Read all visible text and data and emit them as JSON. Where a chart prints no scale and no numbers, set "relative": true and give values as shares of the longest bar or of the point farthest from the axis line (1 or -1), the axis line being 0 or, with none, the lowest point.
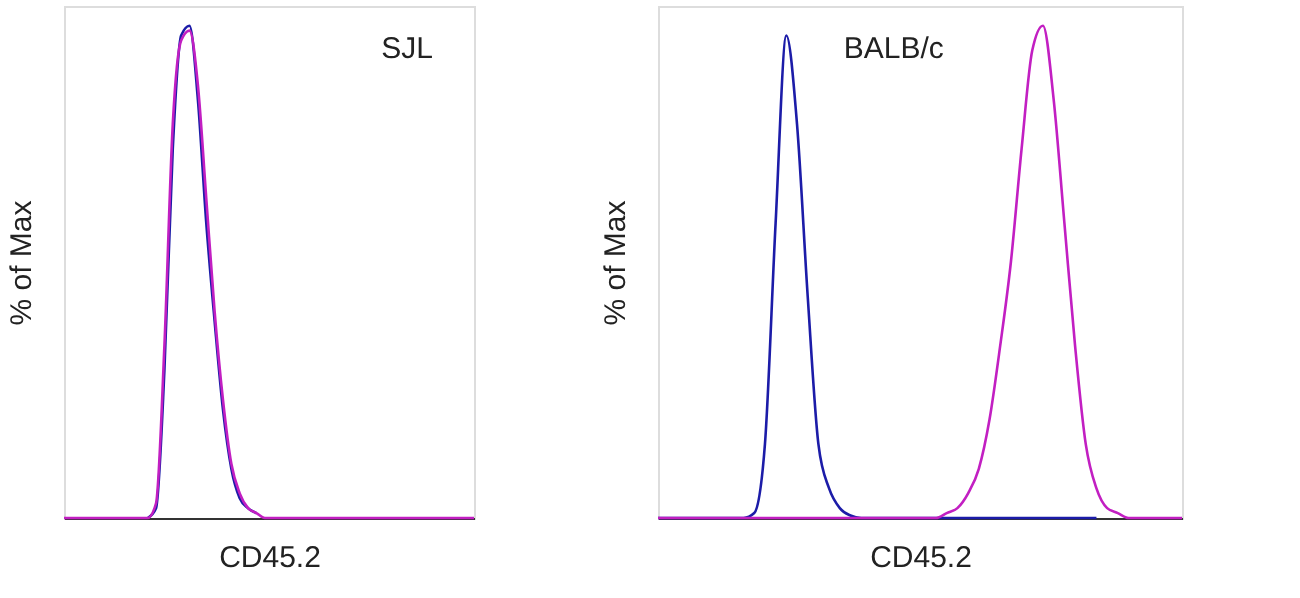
{
  "chart_data": [
    {
      "type": "line",
      "relative": true,
      "ylabel": "% of Max",
      "xlabel": "CD45.2",
      "annotations": [
        "SJL"
      ],
      "legend": false,
      "grid": false,
      "tick_labels": false,
      "categories": [
        null,
        null,
        null,
        null,
        null,
        null,
        null,
        null,
        null,
        null,
        null,
        null,
        null,
        null,
        null,
        null,
        null,
        null,
        null,
        null,
        null,
        null,
        null,
        null,
        null,
        null,
        null,
        null,
        null,
        null,
        null,
        null,
        null,
        null,
        null,
        null,
        null,
        null,
        null,
        null,
        null,
        null,
        null,
        null,
        null,
        null,
        null,
        null,
        null,
        null
      ],
      "series": [
        {
          "color": "#1c1ca8",
          "values": [
            null,
            null,
            null,
            null,
            null,
            null,
            null,
            null,
            null,
            null,
            0,
            0.02,
            0.3,
            0.75,
            0.98,
            1.0,
            0.85,
            0.6,
            0.4,
            0.22,
            0.1,
            0.04,
            0.02,
            0.01,
            null,
            null,
            null,
            null,
            null,
            null,
            null,
            null,
            null,
            null,
            null,
            null,
            null,
            null,
            null,
            null,
            null,
            null,
            null,
            null,
            null,
            null,
            null,
            null,
            null,
            null
          ]
        },
        {
          "color": "#c21fc2",
          "values": [
            0,
            0,
            0,
            0,
            0,
            0,
            0,
            0,
            0,
            0,
            0,
            0.03,
            0.35,
            0.8,
            0.97,
            0.99,
            0.88,
            0.65,
            0.42,
            0.24,
            0.11,
            0.05,
            0.02,
            0.01,
            0,
            0,
            0,
            0,
            0,
            0,
            0,
            0,
            0,
            0,
            0,
            0,
            0,
            0,
            0,
            0,
            0,
            0,
            0,
            0,
            0,
            0,
            0,
            0,
            0,
            0
          ]
        }
      ]
    },
    {
      "type": "line",
      "relative": true,
      "ylabel": "% of Max",
      "xlabel": "CD45.2",
      "annotations": [
        "BALB/c"
      ],
      "legend": false,
      "grid": false,
      "tick_labels": false,
      "categories": [
        null,
        null,
        null,
        null,
        null,
        null,
        null,
        null,
        null,
        null,
        null,
        null,
        null,
        null,
        null,
        null,
        null,
        null,
        null,
        null,
        null,
        null,
        null,
        null,
        null,
        null,
        null,
        null,
        null,
        null,
        null,
        null,
        null,
        null,
        null,
        null,
        null,
        null,
        null,
        null,
        null,
        null,
        null,
        null,
        null,
        null,
        null,
        null,
        null,
        null
      ],
      "series": [
        {
          "color": "#1c1ca8",
          "values": [
            0,
            0,
            0,
            0,
            0,
            0,
            0,
            0,
            0,
            0.01,
            0.15,
            0.6,
            0.98,
            0.8,
            0.45,
            0.15,
            0.06,
            0.02,
            0.005,
            0,
            0,
            0,
            0,
            0,
            0,
            0,
            0,
            0,
            0,
            0,
            0,
            0,
            0,
            0,
            0,
            0,
            0,
            0,
            0,
            0,
            0,
            0,
            null,
            null,
            null,
            null,
            null,
            null,
            null,
            null
          ]
        },
        {
          "color": "#c21fc2",
          "values": [
            0,
            0,
            0,
            0,
            0,
            0,
            0,
            0,
            0,
            0,
            0,
            0,
            0,
            0,
            0,
            0,
            0,
            0,
            0,
            0,
            0,
            0,
            0,
            0,
            0,
            0,
            0,
            0.01,
            0.02,
            0.05,
            0.1,
            0.2,
            0.35,
            0.52,
            0.75,
            0.95,
            1.0,
            0.85,
            0.6,
            0.35,
            0.15,
            0.06,
            0.02,
            0.01,
            0,
            0,
            0,
            0,
            0,
            0
          ]
        }
      ]
    }
  ]
}
